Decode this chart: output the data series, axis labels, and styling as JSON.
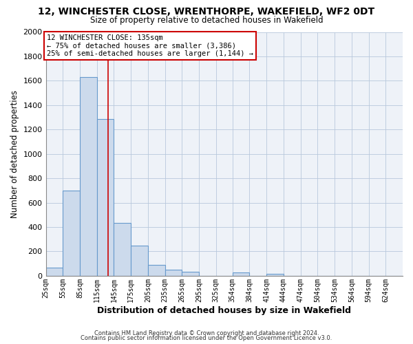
{
  "title": "12, WINCHESTER CLOSE, WRENTHORPE, WAKEFIELD, WF2 0DT",
  "subtitle": "Size of property relative to detached houses in Wakefield",
  "xlabel": "Distribution of detached houses by size in Wakefield",
  "ylabel": "Number of detached properties",
  "bar_color": "#ccdaec",
  "bar_edge_color": "#6699cc",
  "grid_color": "#b8c8dc",
  "background_color": "#ffffff",
  "axes_background": "#eef2f8",
  "vline_x": 135,
  "vline_color": "#cc0000",
  "annotation_line1": "12 WINCHESTER CLOSE: 135sqm",
  "annotation_line2": "← 75% of detached houses are smaller (3,386)",
  "annotation_line3": "25% of semi-detached houses are larger (1,144) →",
  "annotation_box_color": "white",
  "annotation_box_edge": "#cc0000",
  "footer_line1": "Contains HM Land Registry data © Crown copyright and database right 2024.",
  "footer_line2": "Contains public sector information licensed under the Open Government Licence v3.0.",
  "ylim": [
    0,
    2000
  ],
  "yticks": [
    0,
    200,
    400,
    600,
    800,
    1000,
    1200,
    1400,
    1600,
    1800,
    2000
  ],
  "bin_labels": [
    "25sqm",
    "55sqm",
    "85sqm",
    "115sqm",
    "145sqm",
    "175sqm",
    "205sqm",
    "235sqm",
    "265sqm",
    "295sqm",
    "325sqm",
    "354sqm",
    "384sqm",
    "414sqm",
    "444sqm",
    "474sqm",
    "504sqm",
    "534sqm",
    "564sqm",
    "594sqm",
    "624sqm"
  ],
  "bin_values": [
    65,
    700,
    1630,
    1285,
    435,
    250,
    90,
    52,
    35,
    0,
    0,
    30,
    0,
    15,
    0,
    0,
    0,
    0,
    0,
    0,
    0
  ],
  "bin_edges": [
    25,
    55,
    85,
    115,
    145,
    175,
    205,
    235,
    265,
    295,
    325,
    354,
    384,
    414,
    444,
    474,
    504,
    534,
    564,
    594,
    624,
    654
  ]
}
